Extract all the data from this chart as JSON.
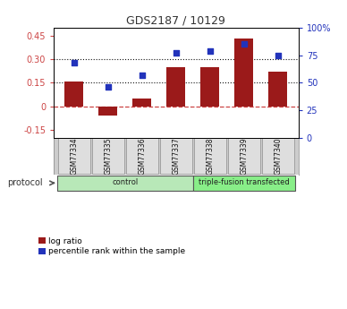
{
  "title": "GDS2187 / 10129",
  "samples": [
    "GSM77334",
    "GSM77335",
    "GSM77336",
    "GSM77337",
    "GSM77338",
    "GSM77339",
    "GSM77340"
  ],
  "log_ratio": [
    0.16,
    -0.06,
    0.05,
    0.25,
    0.25,
    0.43,
    0.22
  ],
  "pct_rank": [
    68,
    46,
    57,
    77,
    79,
    85,
    75
  ],
  "groups": [
    {
      "label": "control",
      "indices": [
        0,
        1,
        2,
        3
      ],
      "color": "#b8e8b8"
    },
    {
      "label": "triple-fusion transfected",
      "indices": [
        4,
        5,
        6
      ],
      "color": "#88ee88"
    }
  ],
  "bar_color": "#9b1a1a",
  "dot_color": "#2233bb",
  "ylim_left": [
    -0.2,
    0.5
  ],
  "ylim_right": [
    0,
    100
  ],
  "yticks_left": [
    -0.15,
    0.0,
    0.15,
    0.3,
    0.45
  ],
  "ytick_labels_left": [
    "-0.15",
    "0",
    "0.15",
    "0.30",
    "0.45"
  ],
  "yticks_right": [
    0,
    25,
    50,
    75,
    100
  ],
  "ytick_labels_right": [
    "0",
    "25",
    "50",
    "75",
    "100%"
  ],
  "hlines": [
    {
      "val": 0.0,
      "style": "dashed",
      "color": "#cc4444"
    },
    {
      "val": 0.15,
      "style": "dotted",
      "color": "#111111"
    },
    {
      "val": 0.3,
      "style": "dotted",
      "color": "#111111"
    }
  ],
  "background_color": "#ffffff",
  "bar_width": 0.55,
  "protocol_label": "protocol",
  "legend_items": [
    {
      "label": "log ratio",
      "color": "#9b1a1a",
      "marker": "s"
    },
    {
      "label": "percentile rank within the sample",
      "color": "#2233bb",
      "marker": "s"
    }
  ]
}
